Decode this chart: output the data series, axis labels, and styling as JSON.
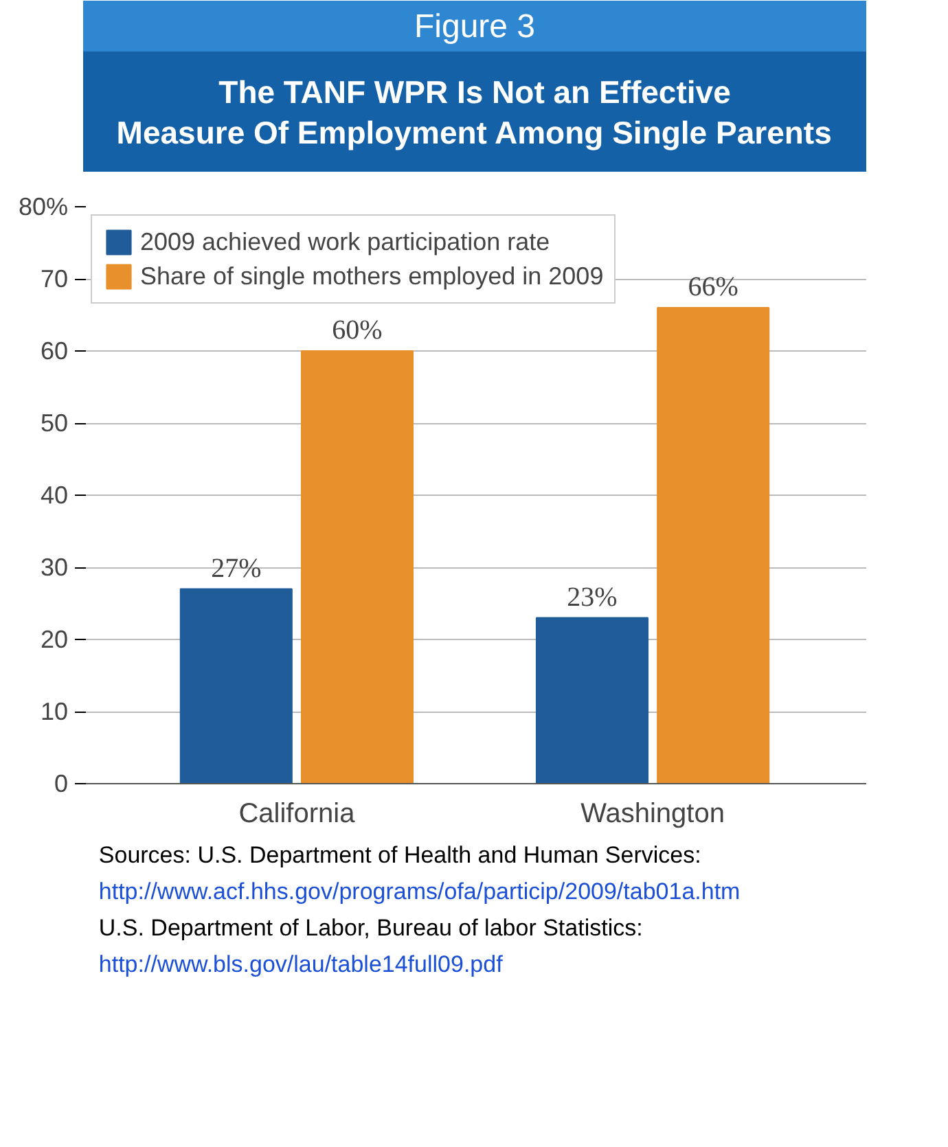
{
  "chart_data": {
    "type": "bar",
    "title": "Figure 3",
    "subtitle": "The TANF WPR Is Not an Effective Measure Of Employment Among Single Parents",
    "categories": [
      "California",
      "Washington"
    ],
    "series": [
      {
        "name": "2009 achieved work participation rate",
        "color": "#1f5c99",
        "values": [
          27,
          23
        ],
        "value_labels": [
          "27%",
          "23%"
        ]
      },
      {
        "name": "Share of single mothers employed in 2009",
        "color": "#e8902c",
        "values": [
          60,
          66
        ],
        "value_labels": [
          "60%",
          "66%"
        ]
      }
    ],
    "ylim": [
      0,
      80
    ],
    "yticks": [
      0,
      10,
      20,
      30,
      40,
      50,
      60,
      70,
      {
        "value": 80,
        "label": "80%"
      }
    ],
    "grid": "y",
    "legend": "top left",
    "annotations": [
      "Sources: U.S. Department of Health and Human Services:",
      "http://www.acf.hhs.gov/programs/ofa/particip/2009/tab01a.htm",
      "U.S. Department of Labor, Bureau of labor Statistics:",
      "http://www.bls.gov/lau/table14full09.pdf"
    ]
  }
}
